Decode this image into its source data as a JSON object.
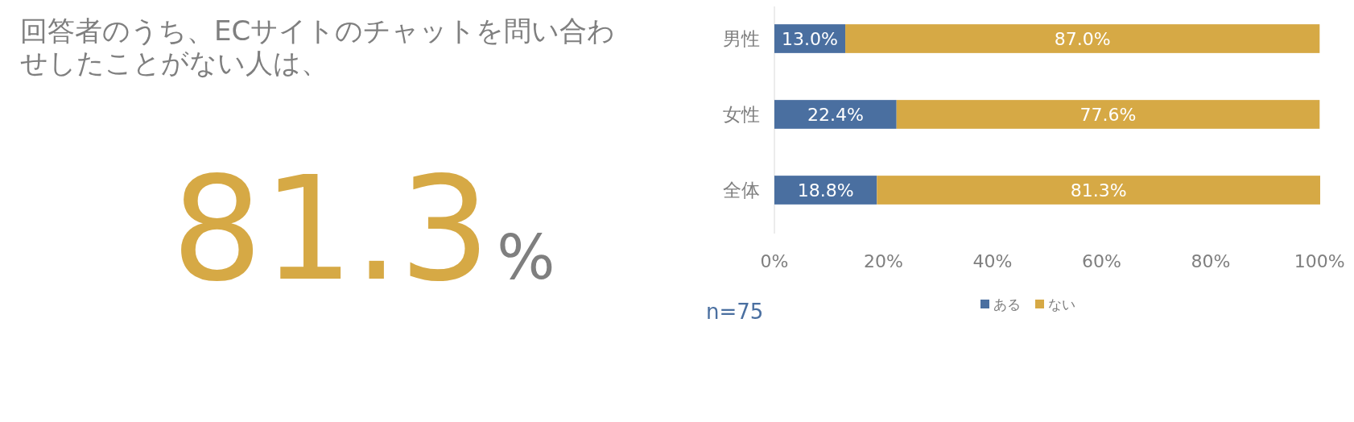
{
  "chart_data": [
    {
      "type": "other",
      "title": "回答者のうち、ECサイトのチャットを問い合わせしたことがない人は、",
      "annotations": [
        "81.3",
        "%"
      ]
    },
    {
      "type": "bar",
      "orientation": "horizontal",
      "stacked": true,
      "categories": [
        "男性",
        "女性",
        "全体"
      ],
      "series": [
        {
          "name": "ある",
          "color": "#4a6fa0",
          "values": [
            13.0,
            22.4,
            18.8
          ],
          "value_labels": [
            "13.0%",
            "22.4%",
            "18.8%"
          ]
        },
        {
          "name": "ない",
          "color": "#d6a945",
          "values": [
            87.0,
            77.6,
            81.3
          ],
          "value_labels": [
            "87.0%",
            "77.6%",
            "81.3%"
          ]
        }
      ],
      "xlim": [
        0,
        100.1
      ],
      "xticks": [
        {
          "value": 0,
          "label": "0%"
        },
        {
          "value": 20,
          "label": "20%"
        },
        {
          "value": 40,
          "label": "40%"
        },
        {
          "value": 60,
          "label": "60%"
        },
        {
          "value": 80,
          "label": "80%"
        },
        {
          "value": 100,
          "label": "100%"
        }
      ],
      "legend": "bottom",
      "annotations": [
        "n=75"
      ]
    }
  ]
}
